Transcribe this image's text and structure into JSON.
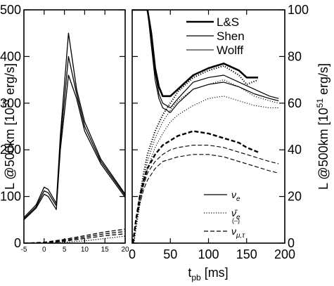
{
  "chart_data": {
    "type": "line",
    "ylabel_left": "L @500km [10⁵¹ erg/s]",
    "ylabel_right": "L @500km [10⁵¹ erg/s]",
    "xlabel": "t_pb [ms]",
    "colors": {
      "lines": "#000000",
      "background": "#ffffff"
    },
    "panels": [
      {
        "id": "left",
        "xlim": [
          -5,
          20
        ],
        "ylim": [
          0,
          500
        ],
        "xticks": [
          "-5",
          "0",
          "5",
          "10",
          "15",
          "20"
        ],
        "yticks": [
          "0",
          "100",
          "200",
          "300",
          "400",
          "500"
        ],
        "series": [
          {
            "model": "L&S",
            "species": "nu_e",
            "style": "solid",
            "x": [
              -5,
              -2,
              0,
              1,
              3,
              4,
              6,
              8,
              10,
              14,
              20
            ],
            "y": [
              55,
              82,
              120,
              115,
              85,
              230,
              450,
              330,
              260,
              180,
              105
            ]
          },
          {
            "model": "Shen",
            "species": "nu_e",
            "style": "solid",
            "x": [
              -5,
              -2,
              0,
              1,
              3,
              4,
              6,
              8,
              10,
              14,
              20
            ],
            "y": [
              52,
              78,
              112,
              108,
              80,
              215,
              400,
              320,
              250,
              175,
              102
            ]
          },
          {
            "model": "Wolff",
            "species": "nu_e",
            "style": "solid",
            "x": [
              -5,
              -2,
              0,
              1,
              3,
              4,
              6,
              8,
              10,
              14,
              20
            ],
            "y": [
              50,
              75,
              105,
              100,
              72,
              200,
              360,
              310,
              240,
              170,
              98
            ]
          },
          {
            "model": "L&S",
            "species": "nu_e_bar",
            "style": "dotted",
            "x": [
              -5,
              0,
              5,
              10,
              15,
              20
            ],
            "y": [
              0,
              0,
              2,
              5,
              10,
              15
            ]
          },
          {
            "model": "L&S",
            "species": "nu_mu_tau",
            "style": "dashed",
            "x": [
              -5,
              0,
              5,
              10,
              15,
              20
            ],
            "y": [
              0,
              2,
              8,
              16,
              24,
              30
            ]
          },
          {
            "model": "Shen",
            "species": "nu_mu_tau",
            "style": "dashed",
            "x": [
              -5,
              0,
              5,
              10,
              15,
              20
            ],
            "y": [
              0,
              1,
              6,
              13,
              20,
              25
            ]
          },
          {
            "model": "Wolff",
            "species": "nu_mu_tau",
            "style": "dashed",
            "x": [
              -5,
              0,
              5,
              10,
              15,
              20
            ],
            "y": [
              0,
              0,
              4,
              10,
              16,
              20
            ]
          }
        ]
      },
      {
        "id": "right",
        "xlim": [
          0,
          200
        ],
        "ylim": [
          0,
          100
        ],
        "xticks": [
          "0",
          "50",
          "100",
          "150",
          "200"
        ],
        "yticks": [
          "0",
          "20",
          "40",
          "60",
          "80",
          "100"
        ],
        "series": [
          {
            "model": "L&S",
            "species": "nu_e",
            "style": "solid",
            "width": 2.6,
            "x": [
              0,
              3,
              6,
              10,
              15,
              20,
              25,
              30,
              35,
              40,
              50,
              60,
              80,
              100,
              120,
              140,
              150,
              165
            ],
            "y": [
              100,
              100,
              100,
              100,
              100,
              100,
              90,
              75,
              67,
              63,
              63,
              66,
              72,
              75,
              77,
              74,
              71,
              71
            ]
          },
          {
            "model": "Shen",
            "species": "nu_e",
            "style": "solid",
            "width": 1.2,
            "x": [
              0,
              3,
              6,
              10,
              15,
              20,
              25,
              30,
              35,
              40,
              50,
              60,
              80,
              100,
              120,
              140,
              160,
              180,
              192
            ],
            "y": [
              100,
              100,
              100,
              100,
              100,
              100,
              88,
              73,
              64,
              60,
              58,
              62,
              69,
              71,
              72,
              69,
              66,
              63,
              62
            ]
          },
          {
            "model": "Wolff",
            "species": "nu_e",
            "style": "solid",
            "width": 1.2,
            "x": [
              0,
              3,
              6,
              10,
              15,
              20,
              25,
              30,
              35,
              40,
              50,
              60,
              80,
              100,
              120,
              140,
              160,
              180,
              192
            ],
            "y": [
              100,
              100,
              100,
              100,
              100,
              100,
              85,
              70,
              62,
              58,
              56,
              60,
              66,
              68,
              69,
              67,
              64,
              62,
              61
            ]
          },
          {
            "model": "L&S",
            "species": "nu_e_bar",
            "style": "dotted",
            "width": 2.2,
            "x": [
              2,
              6,
              10,
              15,
              20,
              30,
              40,
              50,
              60,
              80,
              100,
              120,
              140,
              150,
              165
            ],
            "y": [
              0,
              10,
              20,
              30,
              38,
              48,
              55,
              60,
              65,
              71,
              74,
              76,
              72,
              68,
              70
            ]
          },
          {
            "model": "Shen",
            "species": "nu_e_bar",
            "style": "dotted",
            "width": 1.1,
            "x": [
              2,
              6,
              10,
              15,
              20,
              30,
              40,
              50,
              60,
              80,
              100,
              120,
              140,
              160,
              180,
              192
            ],
            "y": [
              0,
              9,
              18,
              27,
              35,
              45,
              52,
              57,
              61,
              66,
              68,
              70,
              67,
              63,
              61,
              60
            ]
          },
          {
            "model": "Wolff",
            "species": "nu_e_bar",
            "style": "dotted",
            "width": 1.1,
            "x": [
              2,
              6,
              10,
              15,
              20,
              30,
              40,
              50,
              60,
              80,
              100,
              120,
              140,
              160,
              180,
              192
            ],
            "y": [
              0,
              8,
              16,
              25,
              32,
              41,
              47,
              52,
              55,
              59,
              62,
              63,
              61,
              59,
              58,
              58
            ]
          },
          {
            "model": "L&S",
            "species": "nu_mu_tau",
            "style": "dashed",
            "width": 2.4,
            "x": [
              1,
              5,
              10,
              15,
              20,
              30,
              40,
              50,
              60,
              70,
              80,
              100,
              120,
              140,
              150,
              165
            ],
            "y": [
              0,
              10,
              20,
              27,
              32,
              38,
              42,
              44,
              46,
              47,
              48,
              47,
              45,
              43,
              41,
              39
            ]
          },
          {
            "model": "Shen",
            "species": "nu_mu_tau",
            "style": "dashed",
            "width": 1.1,
            "x": [
              1,
              5,
              10,
              15,
              20,
              30,
              40,
              50,
              60,
              80,
              100,
              120,
              140,
              160,
              180,
              192
            ],
            "y": [
              0,
              10,
              19,
              25,
              30,
              35,
              38,
              40,
              41,
              42,
              42,
              41,
              39,
              37,
              35,
              34
            ]
          },
          {
            "model": "Wolff",
            "species": "nu_mu_tau",
            "style": "dashed",
            "width": 1.1,
            "x": [
              1,
              5,
              10,
              15,
              20,
              30,
              40,
              50,
              60,
              80,
              100,
              120,
              140,
              160,
              180,
              192
            ],
            "y": [
              0,
              9,
              17,
              23,
              27,
              32,
              35,
              36,
              37,
              38,
              38,
              37,
              35,
              33,
              31,
              30
            ]
          }
        ]
      }
    ],
    "legend_models": [
      {
        "label": "L&S",
        "width": 2.6
      },
      {
        "label": "Shen",
        "width": 1.3
      },
      {
        "label": "Wolff",
        "width": 1.0
      }
    ],
    "legend_species": [
      {
        "label": "ν",
        "sub": "e",
        "style": "solid"
      },
      {
        "label": "ν̄",
        "sub": "e",
        "style": "dotted"
      },
      {
        "label": "ν",
        "sub": "μ,τ",
        "style": "dashed",
        "paren": "(–)"
      }
    ],
    "ylabel_text": "L @500km [10",
    "ylabel_sup": "51",
    "ylabel_tail": " erg/s]",
    "xlabel_main": "t",
    "xlabel_sub": "pb",
    "xlabel_tail": " [ms]"
  }
}
